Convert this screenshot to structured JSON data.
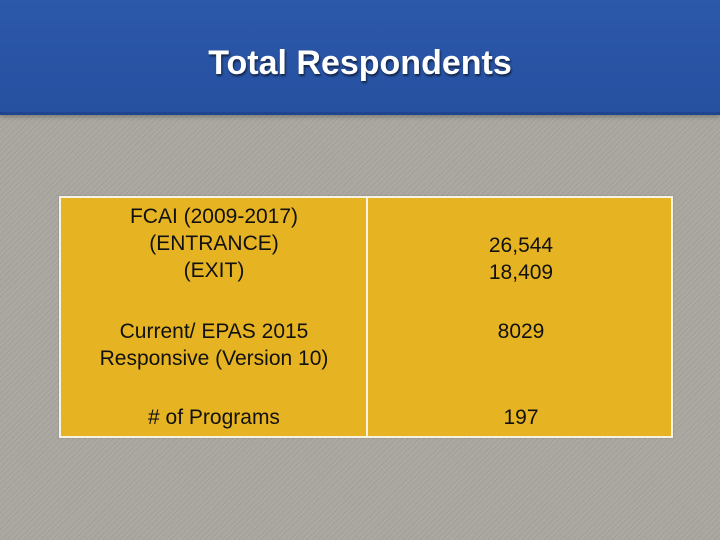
{
  "title": "Total Respondents",
  "table": {
    "rows": [
      {
        "label_lines": [
          "FCAI (2009-2017)",
          "(ENTRANCE)",
          "(EXIT)"
        ],
        "value_lines": [
          "26,544",
          "18,409"
        ]
      },
      {
        "label_lines": [
          "Current/ EPAS 2015",
          "Responsive (Version 10)"
        ],
        "value_lines": [
          "8029"
        ]
      },
      {
        "label_lines": [
          "# of Programs"
        ],
        "value_lines": [
          "197"
        ]
      }
    ]
  },
  "colors": {
    "title_bar": "#2b56a6",
    "table_fill": "#e6b322",
    "table_border": "#f7f3e4",
    "background": "#a9a79f"
  }
}
